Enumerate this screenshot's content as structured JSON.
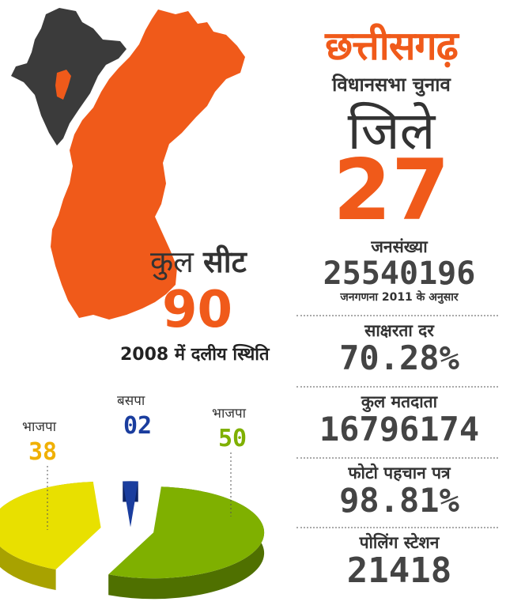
{
  "header": {
    "title": "छत्तीसगढ़",
    "subtitle": "विधानसभा चुनाव"
  },
  "districts": {
    "label": "जिले",
    "value": "27"
  },
  "seats": {
    "label_prefix": "कुल",
    "label_bold": "सीट",
    "value": "90"
  },
  "party_position_title": "2008 में दलीय स्थिति",
  "stats": [
    {
      "label": "जनसंख्या",
      "value": "25540196",
      "note": "जनगणना 2011 के अनुसार"
    },
    {
      "label": "साक्षरता दर",
      "value": "70.28%"
    },
    {
      "label": "कुल मतदाता",
      "value": "16796174"
    },
    {
      "label": "फोटो पहचान पत्र",
      "value": "98.81%"
    },
    {
      "label": "पोलिंग स्टेशन",
      "value": "21418"
    }
  ],
  "chart_data": {
    "type": "pie",
    "categories": [
      "भाजपा",
      "बसपा",
      "भाजपा"
    ],
    "values": [
      38,
      2,
      50
    ],
    "colors": [
      "#e8e000",
      "#1a3d9e",
      "#7fb000"
    ]
  },
  "colors": {
    "accent": "#f05a1a",
    "map_dark": "#3a3a3a"
  }
}
